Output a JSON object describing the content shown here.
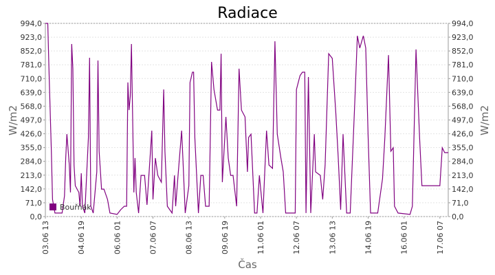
{
  "chart_data": {
    "type": "line",
    "title": "Radiace",
    "xlabel": "Čas",
    "ylabel": "W/m2",
    "x": [
      0,
      2,
      3,
      5,
      6,
      8,
      14,
      16,
      17,
      18,
      20,
      21,
      22,
      23,
      24,
      25,
      28,
      29,
      30,
      31,
      33,
      36,
      37,
      38,
      40,
      43,
      44,
      45,
      47,
      49,
      52,
      54,
      60,
      63,
      66,
      68,
      69,
      70,
      71,
      72,
      74,
      75,
      76,
      78,
      80,
      83,
      85,
      89,
      90,
      92,
      94,
      97,
      99,
      100,
      102,
      106,
      108,
      109,
      111,
      114,
      115,
      117,
      120,
      121,
      123,
      124,
      125,
      128,
      130,
      132,
      134,
      137,
      139,
      141,
      144,
      146,
      147,
      148,
      151,
      153,
      155,
      157,
      160,
      162,
      164,
      167,
      169,
      170,
      172,
      175,
      177,
      179,
      182,
      185,
      187,
      190,
      192,
      194,
      197,
      199,
      201,
      206,
      209,
      210,
      213,
      215,
      217,
      218,
      220,
      222,
      225,
      226,
      230,
      232,
      234,
      237,
      240,
      243,
      245,
      247,
      249,
      252,
      255,
      259,
      261,
      263,
      266,
      268,
      270,
      272,
      278,
      282,
      284,
      286,
      287,
      289,
      291,
      292,
      295,
      305,
      307,
      310,
      313,
      315,
      318,
      330,
      332,
      334,
      337
    ],
    "series": [
      {
        "name": "Bouřňák",
        "color": "#800080",
        "values": [
          994,
          994,
          761,
          336,
          88,
          18,
          18,
          106,
          301,
          424,
          265,
          124,
          888,
          761,
          265,
          159,
          124,
          53,
          223,
          53,
          18,
          407,
          817,
          53,
          18,
          230,
          803,
          336,
          141,
          141,
          88,
          18,
          11,
          35,
          53,
          53,
          690,
          548,
          619,
          888,
          124,
          301,
          124,
          18,
          212,
          212,
          60,
          442,
          88,
          301,
          212,
          177,
          654,
          336,
          53,
          18,
          212,
          53,
          212,
          442,
          301,
          18,
          159,
          690,
          743,
          743,
          407,
          18,
          212,
          212,
          53,
          53,
          796,
          654,
          548,
          548,
          838,
          177,
          513,
          301,
          212,
          212,
          53,
          761,
          548,
          513,
          230,
          407,
          424,
          18,
          18,
          212,
          18,
          442,
          265,
          248,
          902,
          424,
          301,
          230,
          18,
          18,
          18,
          654,
          725,
          743,
          743,
          18,
          718,
          18,
          424,
          230,
          212,
          88,
          265,
          838,
          814,
          531,
          301,
          35,
          424,
          18,
          18,
          619,
          930,
          867,
          930,
          867,
          407,
          18,
          18,
          195,
          407,
          690,
          831,
          336,
          354,
          53,
          18,
          11,
          53,
          860,
          407,
          159,
          159,
          159,
          354,
          329,
          329
        ]
      }
    ],
    "xlim": [
      0,
      337
    ],
    "xticks": [
      {
        "value": 0,
        "label": "03.06 13"
      },
      {
        "value": 30,
        "label": "04.06 19"
      },
      {
        "value": 60,
        "label": "06.06 01"
      },
      {
        "value": 90,
        "label": "07.06 07"
      },
      {
        "value": 120,
        "label": "08.06 13"
      },
      {
        "value": 150,
        "label": "09.06 19"
      },
      {
        "value": 180,
        "label": "11.06 01"
      },
      {
        "value": 210,
        "label": "12.06 07"
      },
      {
        "value": 240,
        "label": "13.06 13"
      },
      {
        "value": 270,
        "label": "14.06 19"
      },
      {
        "value": 300,
        "label": "16.06 01"
      },
      {
        "value": 330,
        "label": "17.06 07"
      }
    ],
    "ylim": [
      0,
      994
    ],
    "yticks": [
      {
        "value": 0,
        "label": "0,0"
      },
      {
        "value": 71,
        "label": "71,0"
      },
      {
        "value": 142,
        "label": "142,0"
      },
      {
        "value": 213,
        "label": "213,0"
      },
      {
        "value": 284,
        "label": "284,0"
      },
      {
        "value": 355,
        "label": "355,0"
      },
      {
        "value": 426,
        "label": "426,0"
      },
      {
        "value": 497,
        "label": "497,0"
      },
      {
        "value": 568,
        "label": "568,0"
      },
      {
        "value": 639,
        "label": "639,0"
      },
      {
        "value": 710,
        "label": "710,0"
      },
      {
        "value": 781,
        "label": "781,0"
      },
      {
        "value": 852,
        "label": "852,0"
      },
      {
        "value": 923,
        "label": "923,0"
      },
      {
        "value": 994,
        "label": "994,0"
      }
    ],
    "grid": true,
    "legend": "lower left"
  }
}
